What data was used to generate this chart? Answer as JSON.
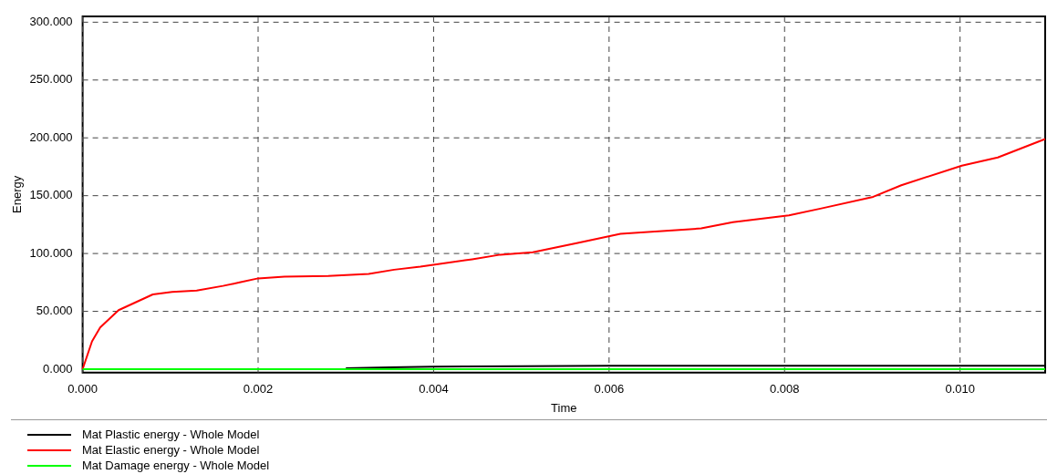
{
  "chart_data": {
    "type": "line",
    "xlabel": "Time",
    "ylabel": "Energy",
    "xlim": [
      0,
      0.01097
    ],
    "ylim": [
      -3,
      305
    ],
    "xticks": [
      {
        "value": 0,
        "label": "0.000"
      },
      {
        "value": 0.002,
        "label": "0.002"
      },
      {
        "value": 0.004,
        "label": "0.004"
      },
      {
        "value": 0.006,
        "label": "0.006"
      },
      {
        "value": 0.008,
        "label": "0.008"
      },
      {
        "value": 0.01,
        "label": "0.010"
      }
    ],
    "yticks": [
      {
        "value": 0,
        "label": "0.000"
      },
      {
        "value": 50,
        "label": "50.000"
      },
      {
        "value": 100,
        "label": "100.000"
      },
      {
        "value": 150,
        "label": "150.000"
      },
      {
        "value": 200,
        "label": "200.000"
      },
      {
        "value": 250,
        "label": "250.000"
      },
      {
        "value": 300,
        "label": "300.000"
      }
    ],
    "grid": true,
    "legend": "bottom left",
    "marker": "none",
    "series": [
      {
        "name": "Mat Plastic energy - Whole Model",
        "color": "#000000",
        "x": [
          0.003,
          0.0035,
          0.004,
          0.005,
          0.006,
          0.008,
          0.01,
          0.01097
        ],
        "values": [
          0.8,
          1.5,
          2.2,
          2.6,
          2.9,
          3,
          3,
          3
        ]
      },
      {
        "name": "Mat Elastic energy - Whole Model",
        "color": "#ff0000",
        "x": [
          0,
          0.000107,
          0.0002,
          0.00041,
          0.0008,
          0.00102,
          0.0013,
          0.0016,
          0.00179,
          0.002,
          0.0023,
          0.0028,
          0.00326,
          0.00355,
          0.00385,
          0.00407,
          0.00444,
          0.00476,
          0.00513,
          0.00563,
          0.00613,
          0.00705,
          0.00741,
          0.00805,
          0.00842,
          0.00901,
          0.00933,
          0.01002,
          0.01043,
          0.01097
        ],
        "values": [
          0,
          24,
          36,
          51,
          64.6,
          66.8,
          68,
          72,
          75,
          78.5,
          80,
          80.6,
          82.4,
          86,
          88.6,
          91,
          95,
          99,
          101,
          109,
          117,
          121.7,
          127,
          133,
          139,
          149,
          159,
          176,
          183,
          199
        ]
      },
      {
        "name": "Mat Damage energy - Whole Model",
        "color": "#00ff00",
        "x": [
          0,
          0.004,
          0.008,
          0.01097
        ],
        "values": [
          0,
          0,
          0,
          0
        ]
      }
    ]
  }
}
